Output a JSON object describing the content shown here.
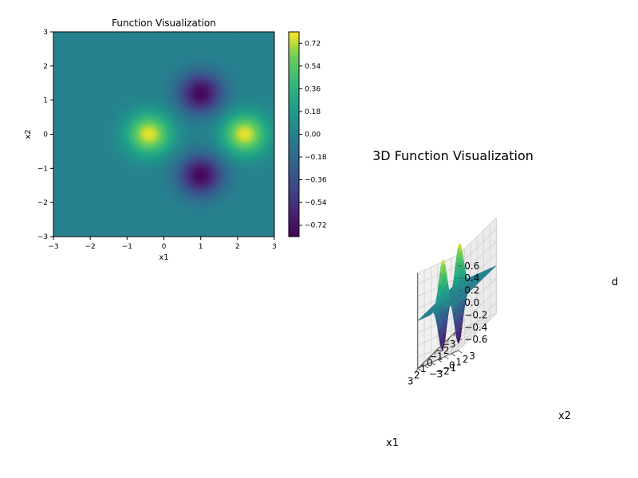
{
  "chart_data": [
    {
      "type": "heatmap",
      "title": "Function Visualization",
      "xlabel": "x1",
      "ylabel": "x2",
      "xlim": [
        -3,
        3
      ],
      "ylim": [
        -3,
        3
      ],
      "xticks": [
        "−3",
        "−2",
        "−1",
        "0",
        "1",
        "2",
        "3"
      ],
      "yticks": [
        "−3",
        "−2",
        "−1",
        "0",
        "1",
        "2",
        "3"
      ],
      "colormap": "viridis",
      "colorbar": {
        "vmin": -0.81,
        "vmax": 0.81,
        "ticks": [
          "−0.72",
          "−0.54",
          "−0.36",
          "−0.18",
          "0.00",
          "0.18",
          "0.36",
          "0.54",
          "0.72"
        ],
        "tick_values": [
          -0.72,
          -0.54,
          -0.36,
          -0.18,
          0.0,
          0.18,
          0.36,
          0.54,
          0.72
        ]
      },
      "features": [
        {
          "kind": "maximum",
          "x1": -0.4,
          "x2": 0.0,
          "value": 0.78
        },
        {
          "kind": "maximum",
          "x1": 2.2,
          "x2": 0.0,
          "value": 0.78
        },
        {
          "kind": "minimum",
          "x1": 1.0,
          "x2": 1.2,
          "value": -0.78
        },
        {
          "kind": "minimum",
          "x1": 1.0,
          "x2": -1.2,
          "value": -0.78
        }
      ]
    },
    {
      "type": "surface3d",
      "title": "3D Function Visualization",
      "xlabel": "x1",
      "ylabel": "x2",
      "zlabel": "d",
      "xlim": [
        -3,
        3
      ],
      "ylim": [
        -3,
        3
      ],
      "zlim": [
        -0.78,
        0.78
      ],
      "xticks": [
        "−3",
        "−2",
        "−1",
        "0",
        "1",
        "2",
        "3"
      ],
      "yticks": [
        "−3",
        "−2",
        "−1",
        "0",
        "1",
        "2",
        "3"
      ],
      "zticks": [
        "−0.6",
        "−0.4",
        "−0.2",
        "0.0",
        "0.2",
        "0.4",
        "0.6"
      ],
      "ztick_values": [
        -0.6,
        -0.4,
        -0.2,
        0.0,
        0.2,
        0.4,
        0.6
      ],
      "colormap": "viridis"
    }
  ]
}
